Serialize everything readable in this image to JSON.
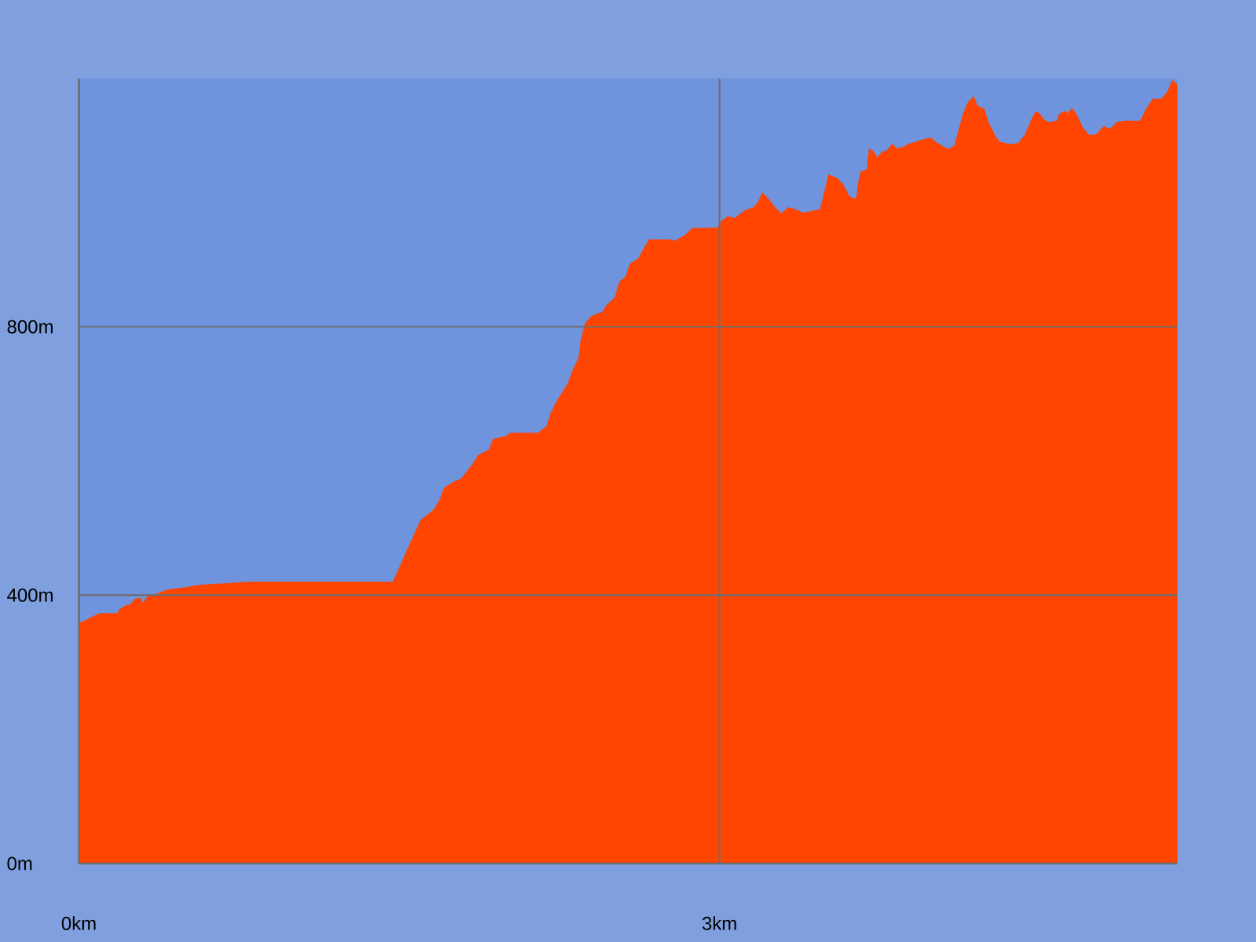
{
  "chart_data": {
    "type": "area",
    "xlim": [
      0,
      5.145
    ],
    "ylim": [
      0,
      1170
    ],
    "xticks": [
      {
        "value": 0,
        "label": "0km"
      },
      {
        "value": 3,
        "label": "3km"
      }
    ],
    "yticks": [
      {
        "value": 0,
        "label": "0m"
      },
      {
        "value": 400,
        "label": "400m"
      },
      {
        "value": 800,
        "label": "800m"
      }
    ],
    "grid": true,
    "color": "#ff4500",
    "x": [
      0,
      0.02,
      0.05,
      0.076,
      0.096,
      0.18,
      0.19,
      0.22,
      0.24,
      0.26,
      0.29,
      0.3,
      0.32,
      0.39,
      0.41,
      0.51,
      0.55,
      0.66,
      0.79,
      1.47,
      1.6,
      1.66,
      1.69,
      1.71,
      1.75,
      1.79,
      1.84,
      1.87,
      1.92,
      1.94,
      2.0,
      2.02,
      2.15,
      2.19,
      2.21,
      2.24,
      2.29,
      2.31,
      2.34,
      2.35,
      2.37,
      2.4,
      2.45,
      2.47,
      2.51,
      2.53,
      2.56,
      2.58,
      2.62,
      2.64,
      2.67,
      2.77,
      2.79,
      2.84,
      2.87,
      2.99,
      3.01,
      3.04,
      3.07,
      3.1,
      3.12,
      3.16,
      3.18,
      3.2,
      3.23,
      3.26,
      3.29,
      3.32,
      3.36,
      3.39,
      3.47,
      3.49,
      3.51,
      3.55,
      3.58,
      3.61,
      3.64,
      3.65,
      3.66,
      3.69,
      3.7,
      3.72,
      3.74,
      3.76,
      3.78,
      3.81,
      3.83,
      3.86,
      3.88,
      3.92,
      3.96,
      3.99,
      4.02,
      4.07,
      4.1,
      4.12,
      4.14,
      4.16,
      4.19,
      4.21,
      4.24,
      4.26,
      4.29,
      4.31,
      4.36,
      4.4,
      4.43,
      4.46,
      4.48,
      4.5,
      4.52,
      4.54,
      4.58,
      4.59,
      4.62,
      4.63,
      4.65,
      4.67,
      4.7,
      4.73,
      4.76,
      4.8,
      4.83,
      4.86,
      4.9,
      4.97,
      5.0,
      5.03,
      5.07,
      5.1,
      5.12,
      5.14,
      5.145
    ],
    "values": [
      359,
      361,
      366,
      370,
      373,
      373,
      379,
      385,
      386,
      394,
      396,
      388,
      398,
      405,
      408,
      412,
      415,
      417,
      420,
      420,
      512,
      527,
      543,
      560,
      568,
      574,
      594,
      609,
      617,
      633,
      637,
      642,
      642,
      652,
      672,
      691,
      716,
      734,
      754,
      781,
      805,
      816,
      822,
      832,
      844,
      867,
      875,
      894,
      902,
      914,
      930,
      930,
      928,
      937,
      947,
      948,
      958,
      965,
      962,
      969,
      974,
      978,
      986,
      1000,
      991,
      978,
      969,
      978,
      975,
      970,
      975,
      1000,
      1027,
      1022,
      1012,
      994,
      991,
      1016,
      1031,
      1035,
      1066,
      1062,
      1052,
      1061,
      1062,
      1073,
      1066,
      1068,
      1072,
      1076,
      1080,
      1082,
      1074,
      1065,
      1070,
      1094,
      1117,
      1133,
      1144,
      1129,
      1125,
      1105,
      1086,
      1076,
      1072,
      1074,
      1086,
      1109,
      1121,
      1118,
      1109,
      1105,
      1107,
      1117,
      1122,
      1118,
      1126,
      1118,
      1098,
      1086,
      1086,
      1099,
      1095,
      1105,
      1107,
      1107,
      1126,
      1140,
      1140,
      1152,
      1168,
      1162,
      1160
    ]
  }
}
